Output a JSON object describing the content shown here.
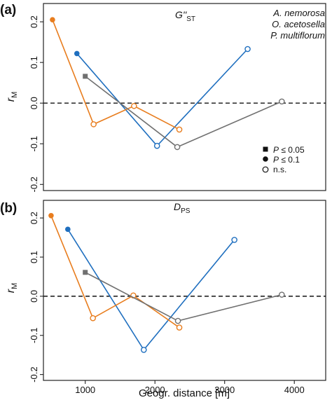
{
  "figure": {
    "xlabel": "Geogr. distance [m]",
    "x_ticks": [
      1000,
      2000,
      3000,
      4000
    ],
    "y_ticks": [
      -0.2,
      -0.1,
      0.0,
      0.1,
      0.2
    ],
    "y_tick_labels": [
      "-0.2",
      "-0.1",
      "0.0",
      "0.1",
      "0.2"
    ],
    "xlim": [
      400,
      4450
    ],
    "ylim": [
      -0.215,
      0.245
    ]
  },
  "legend": {
    "species": [
      {
        "name": "A. nemorosa",
        "color": "#1f6fbf"
      },
      {
        "name": "O. acetosella",
        "color": "#e87d1e"
      },
      {
        "name": "P. multiflorum",
        "color": "#707070"
      }
    ],
    "significance": [
      {
        "label": "P ≤ 0.05",
        "p_text": "P",
        "rest": " ≤ 0.05",
        "marker": "square"
      },
      {
        "label": "P ≤ 0.1",
        "p_text": "P",
        "rest": " ≤ 0.1",
        "marker": "filled-circle"
      },
      {
        "label": "n.s.",
        "p_text": "",
        "rest": "n.s.",
        "marker": "open-circle"
      }
    ]
  },
  "chart_data": [
    {
      "type": "line",
      "panel_label": "(a)",
      "title_main": "G''",
      "title_sub": "ST",
      "ylabel_main": "r",
      "ylabel_sub": "M",
      "hline": 0,
      "xlim": [
        400,
        4450
      ],
      "ylim": [
        -0.215,
        0.245
      ],
      "series": [
        {
          "name": "A. nemorosa",
          "color": "#1f6fbf",
          "x": [
            880,
            2030,
            3330
          ],
          "y": [
            0.122,
            -0.105,
            0.133
          ],
          "markers": [
            "filled-circle",
            "open-circle",
            "open-circle"
          ]
        },
        {
          "name": "O. acetosella",
          "color": "#e87d1e",
          "x": [
            530,
            1120,
            1700,
            2350
          ],
          "y": [
            0.205,
            -0.052,
            -0.007,
            -0.065
          ],
          "markers": [
            "filled-circle",
            "open-circle",
            "open-circle",
            "open-circle"
          ]
        },
        {
          "name": "P. multiflorum",
          "color": "#707070",
          "x": [
            1000,
            2320,
            3820
          ],
          "y": [
            0.066,
            -0.108,
            0.004
          ],
          "markers": [
            "square",
            "open-circle",
            "open-circle"
          ]
        }
      ]
    },
    {
      "type": "line",
      "panel_label": "(b)",
      "title_main": "D",
      "title_sub": "PS",
      "ylabel_main": "r",
      "ylabel_sub": "M",
      "hline": 0,
      "xlim": [
        400,
        4450
      ],
      "ylim": [
        -0.215,
        0.245
      ],
      "series": [
        {
          "name": "A. nemorosa",
          "color": "#1f6fbf",
          "x": [
            750,
            1840,
            3140
          ],
          "y": [
            0.171,
            -0.137,
            0.144
          ],
          "markers": [
            "filled-circle",
            "open-circle",
            "open-circle"
          ]
        },
        {
          "name": "O. acetosella",
          "color": "#e87d1e",
          "x": [
            510,
            1110,
            1690,
            2350
          ],
          "y": [
            0.206,
            -0.056,
            0.002,
            -0.08
          ],
          "markers": [
            "filled-circle",
            "open-circle",
            "open-circle",
            "open-circle"
          ]
        },
        {
          "name": "P. multiflorum",
          "color": "#707070",
          "x": [
            1000,
            2330,
            3820
          ],
          "y": [
            0.061,
            -0.063,
            0.004
          ],
          "markers": [
            "square",
            "open-circle",
            "open-circle"
          ]
        }
      ]
    }
  ]
}
